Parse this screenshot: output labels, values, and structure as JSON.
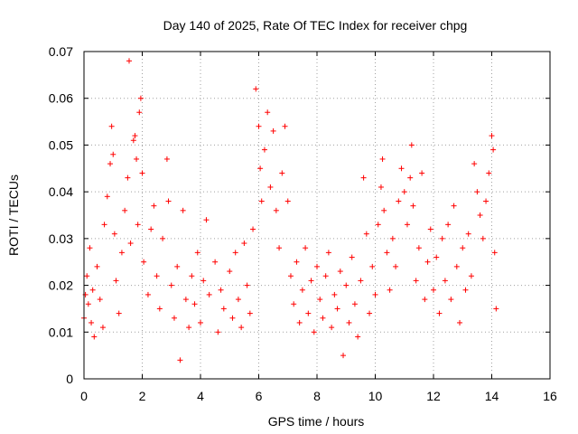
{
  "chart_data": {
    "type": "scatter",
    "title": "Day 140 of 2025, Rate Of TEC Index for receiver chpg",
    "xlabel": "GPS time / hours",
    "ylabel": "ROTI / TECUs",
    "xlim": [
      0,
      16
    ],
    "ylim": [
      0,
      0.07
    ],
    "x_ticks": [
      "0",
      "2",
      "4",
      "6",
      "8",
      "10",
      "12",
      "14",
      "16"
    ],
    "y_ticks": [
      "0",
      "0.01",
      "0.02",
      "0.03",
      "0.04",
      "0.05",
      "0.06",
      "0.07"
    ],
    "grid": true,
    "marker": "+",
    "color": "#ff0000",
    "series": [
      {
        "name": "ROTI",
        "points": [
          [
            0.0,
            0.013
          ],
          [
            0.05,
            0.018
          ],
          [
            0.1,
            0.022
          ],
          [
            0.15,
            0.016
          ],
          [
            0.2,
            0.028
          ],
          [
            0.25,
            0.012
          ],
          [
            0.3,
            0.019
          ],
          [
            0.35,
            0.009
          ],
          [
            0.45,
            0.024
          ],
          [
            0.55,
            0.017
          ],
          [
            0.65,
            0.011
          ],
          [
            0.7,
            0.033
          ],
          [
            0.8,
            0.039
          ],
          [
            0.9,
            0.046
          ],
          [
            0.95,
            0.054
          ],
          [
            1.0,
            0.048
          ],
          [
            1.05,
            0.031
          ],
          [
            1.1,
            0.021
          ],
          [
            1.2,
            0.014
          ],
          [
            1.3,
            0.027
          ],
          [
            1.4,
            0.036
          ],
          [
            1.5,
            0.043
          ],
          [
            1.55,
            0.068
          ],
          [
            1.6,
            0.029
          ],
          [
            1.7,
            0.051
          ],
          [
            1.75,
            0.052
          ],
          [
            1.8,
            0.047
          ],
          [
            1.85,
            0.033
          ],
          [
            1.9,
            0.057
          ],
          [
            1.95,
            0.06
          ],
          [
            2.0,
            0.044
          ],
          [
            2.05,
            0.025
          ],
          [
            2.2,
            0.018
          ],
          [
            2.3,
            0.032
          ],
          [
            2.4,
            0.037
          ],
          [
            2.5,
            0.022
          ],
          [
            2.6,
            0.015
          ],
          [
            2.7,
            0.03
          ],
          [
            2.85,
            0.047
          ],
          [
            2.9,
            0.038
          ],
          [
            3.0,
            0.02
          ],
          [
            3.1,
            0.013
          ],
          [
            3.2,
            0.024
          ],
          [
            3.3,
            0.004
          ],
          [
            3.4,
            0.036
          ],
          [
            3.5,
            0.017
          ],
          [
            3.6,
            0.011
          ],
          [
            3.7,
            0.022
          ],
          [
            3.8,
            0.016
          ],
          [
            3.9,
            0.027
          ],
          [
            4.0,
            0.012
          ],
          [
            4.1,
            0.021
          ],
          [
            4.2,
            0.034
          ],
          [
            4.3,
            0.018
          ],
          [
            4.5,
            0.025
          ],
          [
            4.6,
            0.01
          ],
          [
            4.7,
            0.019
          ],
          [
            4.8,
            0.015
          ],
          [
            5.0,
            0.023
          ],
          [
            5.1,
            0.013
          ],
          [
            5.2,
            0.027
          ],
          [
            5.3,
            0.017
          ],
          [
            5.4,
            0.011
          ],
          [
            5.5,
            0.029
          ],
          [
            5.6,
            0.02
          ],
          [
            5.7,
            0.014
          ],
          [
            5.8,
            0.032
          ],
          [
            5.9,
            0.062
          ],
          [
            6.0,
            0.054
          ],
          [
            6.05,
            0.045
          ],
          [
            6.1,
            0.038
          ],
          [
            6.2,
            0.049
          ],
          [
            6.3,
            0.057
          ],
          [
            6.4,
            0.041
          ],
          [
            6.5,
            0.053
          ],
          [
            6.6,
            0.036
          ],
          [
            6.7,
            0.028
          ],
          [
            6.8,
            0.044
          ],
          [
            6.9,
            0.054
          ],
          [
            7.0,
            0.038
          ],
          [
            7.1,
            0.022
          ],
          [
            7.2,
            0.016
          ],
          [
            7.3,
            0.025
          ],
          [
            7.4,
            0.012
          ],
          [
            7.5,
            0.019
          ],
          [
            7.6,
            0.028
          ],
          [
            7.7,
            0.014
          ],
          [
            7.8,
            0.021
          ],
          [
            7.9,
            0.01
          ],
          [
            8.0,
            0.024
          ],
          [
            8.1,
            0.017
          ],
          [
            8.2,
            0.013
          ],
          [
            8.3,
            0.022
          ],
          [
            8.4,
            0.027
          ],
          [
            8.5,
            0.011
          ],
          [
            8.6,
            0.018
          ],
          [
            8.7,
            0.015
          ],
          [
            8.8,
            0.023
          ],
          [
            8.9,
            0.005
          ],
          [
            9.0,
            0.02
          ],
          [
            9.1,
            0.012
          ],
          [
            9.2,
            0.026
          ],
          [
            9.3,
            0.016
          ],
          [
            9.4,
            0.009
          ],
          [
            9.5,
            0.021
          ],
          [
            9.6,
            0.043
          ],
          [
            9.7,
            0.031
          ],
          [
            9.8,
            0.014
          ],
          [
            9.9,
            0.024
          ],
          [
            10.0,
            0.018
          ],
          [
            10.1,
            0.033
          ],
          [
            10.2,
            0.041
          ],
          [
            10.25,
            0.047
          ],
          [
            10.3,
            0.036
          ],
          [
            10.4,
            0.027
          ],
          [
            10.5,
            0.019
          ],
          [
            10.6,
            0.03
          ],
          [
            10.7,
            0.024
          ],
          [
            10.8,
            0.038
          ],
          [
            10.9,
            0.045
          ],
          [
            11.0,
            0.04
          ],
          [
            11.1,
            0.033
          ],
          [
            11.2,
            0.043
          ],
          [
            11.25,
            0.05
          ],
          [
            11.3,
            0.037
          ],
          [
            11.4,
            0.021
          ],
          [
            11.5,
            0.028
          ],
          [
            11.6,
            0.044
          ],
          [
            11.7,
            0.017
          ],
          [
            11.8,
            0.025
          ],
          [
            11.9,
            0.032
          ],
          [
            12.0,
            0.019
          ],
          [
            12.1,
            0.026
          ],
          [
            12.2,
            0.014
          ],
          [
            12.3,
            0.03
          ],
          [
            12.4,
            0.021
          ],
          [
            12.5,
            0.033
          ],
          [
            12.6,
            0.017
          ],
          [
            12.7,
            0.037
          ],
          [
            12.8,
            0.024
          ],
          [
            12.9,
            0.012
          ],
          [
            13.0,
            0.028
          ],
          [
            13.1,
            0.019
          ],
          [
            13.2,
            0.031
          ],
          [
            13.3,
            0.022
          ],
          [
            13.4,
            0.046
          ],
          [
            13.5,
            0.04
          ],
          [
            13.6,
            0.035
          ],
          [
            13.7,
            0.03
          ],
          [
            13.8,
            0.038
          ],
          [
            13.9,
            0.044
          ],
          [
            14.0,
            0.052
          ],
          [
            14.05,
            0.049
          ],
          [
            14.1,
            0.027
          ],
          [
            14.15,
            0.015
          ]
        ]
      }
    ]
  }
}
